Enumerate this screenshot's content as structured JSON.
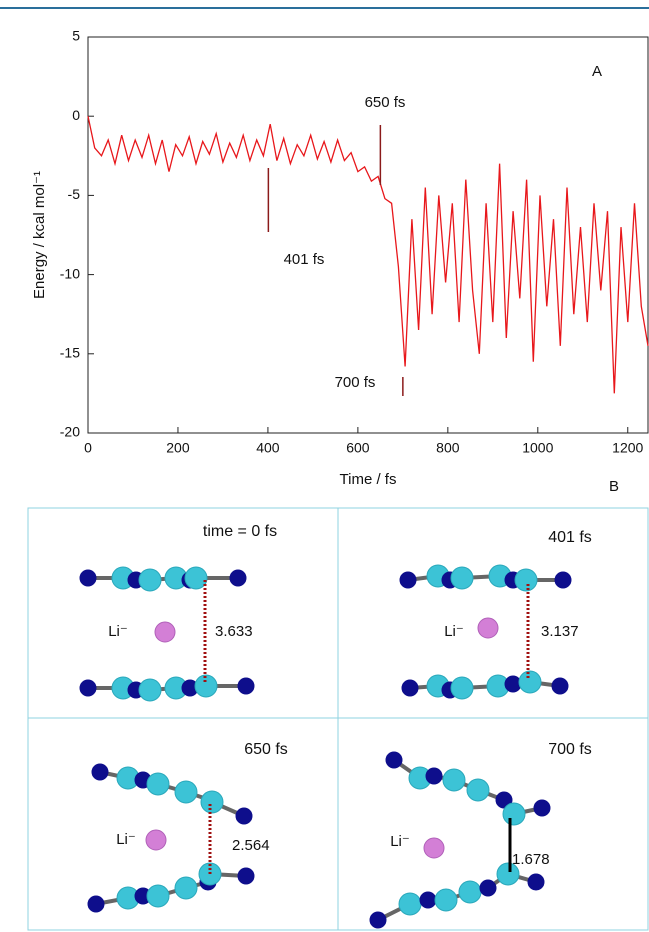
{
  "chart_data": {
    "type": "line",
    "xlabel": "Time / fs",
    "ylabel": "Energy / kcal mol⁻¹",
    "xlim": [
      0,
      1245
    ],
    "ylim": [
      -20,
      5
    ],
    "xticks": [
      0,
      200,
      400,
      600,
      800,
      1000,
      1200
    ],
    "yticks": [
      -20,
      -15,
      -10,
      -5,
      0,
      5
    ],
    "series": [
      {
        "color": "#e8171b",
        "x": [
          0,
          15,
          30,
          45,
          60,
          75,
          90,
          105,
          120,
          135,
          150,
          165,
          180,
          195,
          210,
          225,
          240,
          255,
          270,
          285,
          300,
          315,
          330,
          345,
          360,
          375,
          390,
          405,
          420,
          435,
          450,
          465,
          480,
          495,
          510,
          525,
          540,
          555,
          570,
          585,
          600,
          615,
          630,
          645,
          660,
          675,
          690,
          705,
          720,
          735,
          750,
          765,
          780,
          795,
          810,
          825,
          840,
          855,
          870,
          885,
          900,
          915,
          930,
          945,
          960,
          975,
          990,
          1005,
          1020,
          1035,
          1050,
          1065,
          1080,
          1095,
          1110,
          1125,
          1140,
          1155,
          1170,
          1185,
          1200,
          1215,
          1230,
          1245
        ],
        "values": [
          0,
          -2,
          -2.5,
          -1.5,
          -3,
          -1.2,
          -2.8,
          -1.5,
          -2.6,
          -1.2,
          -3,
          -1.5,
          -3.5,
          -1.8,
          -2.5,
          -1.3,
          -3,
          -1.6,
          -2.4,
          -1.1,
          -2.9,
          -1.7,
          -2.6,
          -1.2,
          -2.8,
          -1.5,
          -2.5,
          -0.5,
          -2.8,
          -1.4,
          -3,
          -1.8,
          -2.5,
          -1.2,
          -2.7,
          -1.6,
          -2.9,
          -1.5,
          -2.8,
          -2.3,
          -3.5,
          -3.2,
          -4.1,
          -3.8,
          -5.2,
          -5.5,
          -9.5,
          -15.8,
          -6.5,
          -13.5,
          -4.5,
          -12.5,
          -5,
          -10.5,
          -5.5,
          -13,
          -4,
          -11,
          -15,
          -5.5,
          -13,
          -3,
          -14,
          -6,
          -11.5,
          -4,
          -15.5,
          -5,
          -12,
          -6.5,
          -14.5,
          -4.5,
          -12.5,
          -7,
          -13,
          -5.5,
          -11,
          -6,
          -17.5,
          -7,
          -13,
          -5.5,
          -12,
          -14.5
        ]
      }
    ],
    "annotations": [
      {
        "text": "A"
      },
      {
        "text": "401 fs",
        "x": 401
      },
      {
        "text": "650 fs",
        "x": 650
      },
      {
        "text": "700 fs",
        "x": 700
      }
    ]
  },
  "panel_b": {
    "label": "B",
    "cells": [
      {
        "title": "time = 0 fs",
        "ion": "Li⁻",
        "distance": 3.633
      },
      {
        "title": "401 fs",
        "ion": "Li⁻",
        "distance": 3.137
      },
      {
        "title": "650 fs",
        "ion": "Li⁻",
        "distance": 2.564
      },
      {
        "title": "700 fs",
        "ion": "Li⁻",
        "distance": 1.678
      }
    ]
  }
}
